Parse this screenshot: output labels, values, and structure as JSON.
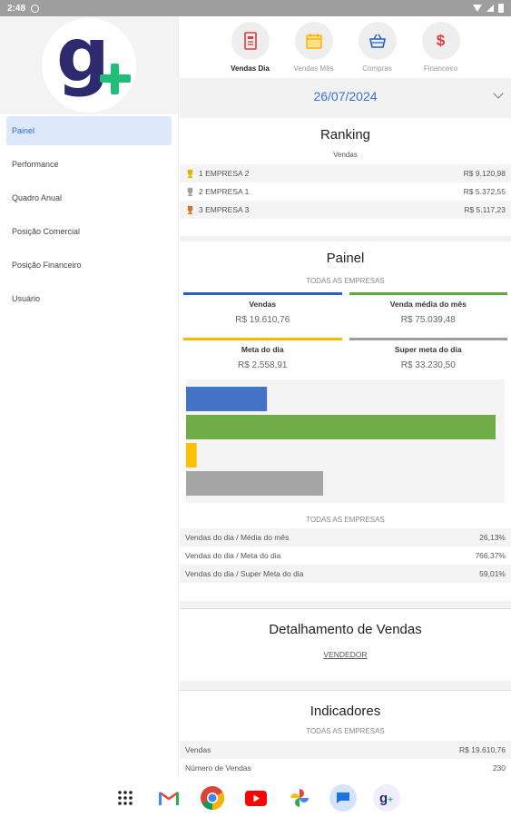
{
  "status": {
    "time": "2:48"
  },
  "sidebar": {
    "items": [
      {
        "label": "Painel",
        "active": true
      },
      {
        "label": "Performance",
        "active": false
      },
      {
        "label": "Quadro Anual",
        "active": false
      },
      {
        "label": "Posição Comercial",
        "active": false
      },
      {
        "label": "Posição Financeiro",
        "active": false
      },
      {
        "label": "Usuário",
        "active": false
      }
    ]
  },
  "topnav": [
    {
      "label": "Vendas Dia",
      "icon": "receipt-icon",
      "color": "#e53935",
      "active": true
    },
    {
      "label": "Vendas Mês",
      "icon": "calendar-icon",
      "color": "#f5b400",
      "active": false
    },
    {
      "label": "Compras",
      "icon": "basket-icon",
      "color": "#1e5fbf",
      "active": false
    },
    {
      "label": "Financeiro",
      "icon": "dollar-icon",
      "color": "#e53935",
      "active": false
    }
  ],
  "date": "26/07/2024",
  "ranking": {
    "title": "Ranking",
    "subtitle": "Vendas",
    "rows": [
      {
        "position": "1",
        "name": "EMPRESA 2",
        "value": "R$ 9.120,98",
        "trophy_color": "#e0b400"
      },
      {
        "position": "2",
        "name": "EMPRESA 1",
        "value": "R$ 5.372,55",
        "trophy_color": "#a0a0a0"
      },
      {
        "position": "3",
        "name": "EMPRESA 3",
        "value": "R$ 5.117,23",
        "trophy_color": "#c87a2a"
      }
    ]
  },
  "painel": {
    "title": "Painel",
    "scope": "TODAS AS EMPRESAS",
    "metrics": [
      {
        "label": "Vendas",
        "value": "R$ 19.610,76",
        "color": "#2b5fc4"
      },
      {
        "label": "Venda média do mês",
        "value": "R$ 75.039,48",
        "color": "#62a83a"
      },
      {
        "label": "Meta do dia",
        "value": "R$ 2.558,91",
        "color": "#f5b800"
      },
      {
        "label": "Super meta do dia",
        "value": "R$ 33.230,50",
        "color": "#9e9e9e"
      }
    ],
    "chart_data": {
      "type": "bar",
      "orientation": "horizontal",
      "categories": [
        "Vendas",
        "Venda média do mês",
        "Meta do dia",
        "Super meta do dia"
      ],
      "values": [
        19610.76,
        75039.48,
        2558.91,
        33230.5
      ],
      "colors": [
        "#4472c4",
        "#70ad47",
        "#ffc000",
        "#a5a5a5"
      ],
      "xlim": [
        0,
        75039.48
      ],
      "grid": false,
      "title": "",
      "xlabel": "",
      "ylabel": ""
    },
    "ratio_scope": "TODAS AS EMPRESAS",
    "ratios": [
      {
        "label": "Vendas do dia / Média do mês",
        "value": "26,13%"
      },
      {
        "label": "Vendas do dia / Meta do dia",
        "value": "766,37%"
      },
      {
        "label": "Vendas do dia / Super Meta do dia",
        "value": "59,01%"
      }
    ]
  },
  "detalhamento": {
    "title": "Detalhamento de Vendas",
    "link": "VENDEDOR"
  },
  "indicadores": {
    "title": "Indicadores",
    "scope": "TODAS AS EMPRESAS",
    "rows": [
      {
        "label": "Vendas",
        "value": "R$ 19.610,76"
      },
      {
        "label": "Número de Vendas",
        "value": "230"
      }
    ]
  },
  "bottom_apps": [
    "apps-grid-icon",
    "gmail-icon",
    "chrome-icon",
    "youtube-icon",
    "photos-icon",
    "messages-icon",
    "gplus-app-icon"
  ]
}
